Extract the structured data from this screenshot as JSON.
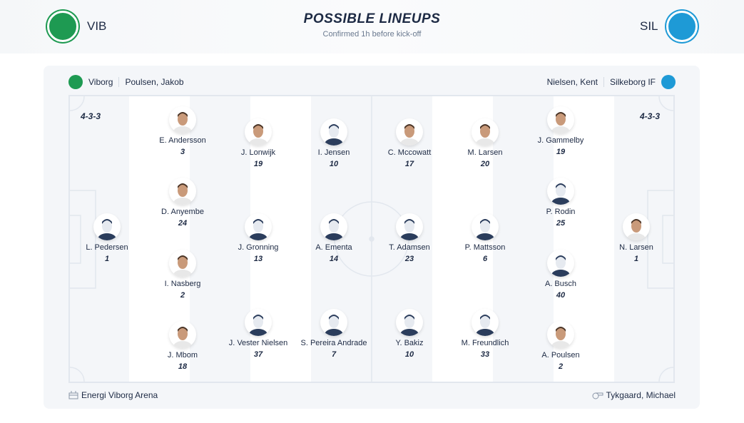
{
  "header": {
    "home_abbr": "VIB",
    "away_abbr": "SIL",
    "title": "POSSIBLE LINEUPS",
    "subtitle": "Confirmed 1h before kick-off"
  },
  "home": {
    "team": "Viborg",
    "coach": "Poulsen, Jakob",
    "formation": "4-3-3",
    "color": "#1e9a52",
    "players": [
      {
        "name": "L. Pedersen",
        "number": "1",
        "photo": false
      },
      {
        "name": "E. Andersson",
        "number": "3",
        "photo": true
      },
      {
        "name": "D. Anyembe",
        "number": "24",
        "photo": true
      },
      {
        "name": "I. Nasberg",
        "number": "2",
        "photo": true
      },
      {
        "name": "J. Mbom",
        "number": "18",
        "photo": true
      },
      {
        "name": "J. Lonwijk",
        "number": "19",
        "photo": true
      },
      {
        "name": "J. Gronning",
        "number": "13",
        "photo": false
      },
      {
        "name": "J. Vester Nielsen",
        "number": "37",
        "photo": false
      },
      {
        "name": "I. Jensen",
        "number": "10",
        "photo": false
      },
      {
        "name": "A. Ementa",
        "number": "14",
        "photo": false
      },
      {
        "name": "S. Pereira Andrade",
        "number": "7",
        "photo": false
      }
    ]
  },
  "away": {
    "team": "Silkeborg IF",
    "coach": "Nielsen, Kent",
    "formation": "4-3-3",
    "color": "#1e9ad6",
    "players": [
      {
        "name": "C. Mccowatt",
        "number": "17",
        "photo": true
      },
      {
        "name": "T. Adamsen",
        "number": "23",
        "photo": false
      },
      {
        "name": "Y. Bakiz",
        "number": "10",
        "photo": false
      },
      {
        "name": "M. Larsen",
        "number": "20",
        "photo": true
      },
      {
        "name": "P. Mattsson",
        "number": "6",
        "photo": false
      },
      {
        "name": "M. Freundlich",
        "number": "33",
        "photo": false
      },
      {
        "name": "J. Gammelby",
        "number": "19",
        "photo": true
      },
      {
        "name": "P. Rodin",
        "number": "25",
        "photo": false
      },
      {
        "name": "A. Busch",
        "number": "40",
        "photo": false
      },
      {
        "name": "A. Poulsen",
        "number": "2",
        "photo": true
      },
      {
        "name": "N. Larsen",
        "number": "1",
        "photo": true
      }
    ]
  },
  "footer": {
    "stadium": "Energi Viborg Arena",
    "stadium_icon": "stadium-icon",
    "referee": "Tykgaard, Michael",
    "referee_icon": "whistle-icon"
  }
}
